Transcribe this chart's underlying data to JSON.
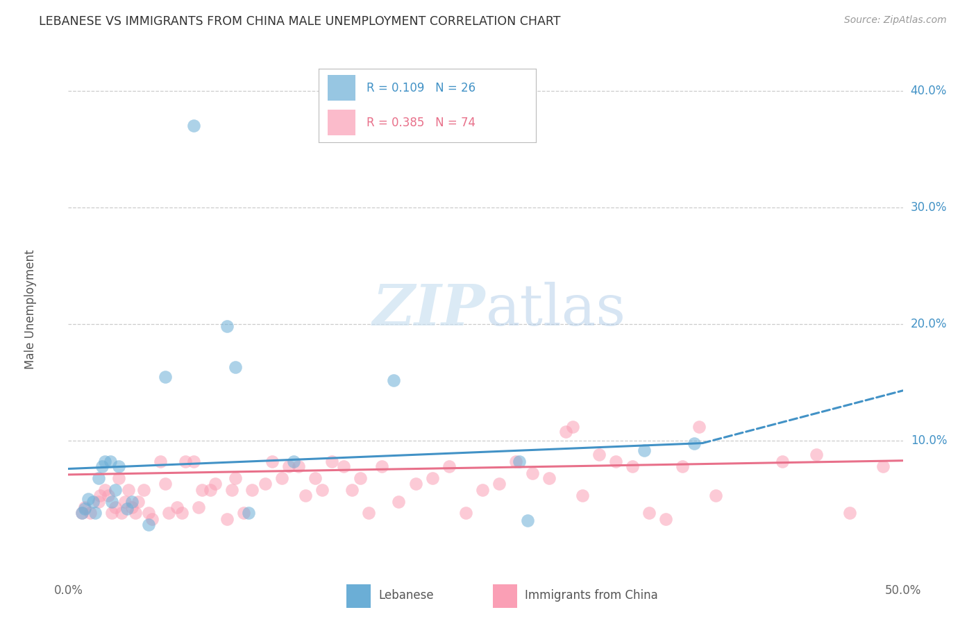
{
  "title": "LEBANESE VS IMMIGRANTS FROM CHINA MALE UNEMPLOYMENT CORRELATION CHART",
  "source": "Source: ZipAtlas.com",
  "ylabel": "Male Unemployment",
  "xlim": [
    0.0,
    0.5
  ],
  "ylim": [
    -0.005,
    0.43
  ],
  "legend_r1_text": "R = 0.109   N = 26",
  "legend_r2_text": "R = 0.385   N = 74",
  "color_blue": "#6baed6",
  "color_pink": "#fa9fb5",
  "color_blue_line": "#4292c6",
  "color_pink_line": "#e8708a",
  "trendline_blue_solid": [
    [
      0.0,
      0.076
    ],
    [
      0.38,
      0.098
    ]
  ],
  "trendline_blue_dashed": [
    [
      0.38,
      0.098
    ],
    [
      0.5,
      0.143
    ]
  ],
  "trendline_pink": [
    [
      0.0,
      0.071
    ],
    [
      0.5,
      0.083
    ]
  ],
  "scatter_blue": [
    [
      0.008,
      0.038
    ],
    [
      0.01,
      0.042
    ],
    [
      0.012,
      0.05
    ],
    [
      0.015,
      0.048
    ],
    [
      0.016,
      0.038
    ],
    [
      0.018,
      0.068
    ],
    [
      0.02,
      0.078
    ],
    [
      0.022,
      0.082
    ],
    [
      0.025,
      0.082
    ],
    [
      0.026,
      0.048
    ],
    [
      0.028,
      0.058
    ],
    [
      0.03,
      0.078
    ],
    [
      0.035,
      0.042
    ],
    [
      0.038,
      0.048
    ],
    [
      0.048,
      0.028
    ],
    [
      0.058,
      0.155
    ],
    [
      0.075,
      0.37
    ],
    [
      0.095,
      0.198
    ],
    [
      0.1,
      0.163
    ],
    [
      0.108,
      0.038
    ],
    [
      0.135,
      0.082
    ],
    [
      0.195,
      0.152
    ],
    [
      0.27,
      0.082
    ],
    [
      0.275,
      0.032
    ],
    [
      0.345,
      0.092
    ],
    [
      0.375,
      0.098
    ]
  ],
  "scatter_pink": [
    [
      0.008,
      0.038
    ],
    [
      0.01,
      0.043
    ],
    [
      0.013,
      0.038
    ],
    [
      0.018,
      0.048
    ],
    [
      0.019,
      0.053
    ],
    [
      0.022,
      0.058
    ],
    [
      0.024,
      0.053
    ],
    [
      0.026,
      0.038
    ],
    [
      0.028,
      0.043
    ],
    [
      0.03,
      0.068
    ],
    [
      0.032,
      0.038
    ],
    [
      0.034,
      0.048
    ],
    [
      0.036,
      0.058
    ],
    [
      0.038,
      0.043
    ],
    [
      0.04,
      0.038
    ],
    [
      0.042,
      0.048
    ],
    [
      0.045,
      0.058
    ],
    [
      0.048,
      0.038
    ],
    [
      0.05,
      0.033
    ],
    [
      0.055,
      0.082
    ],
    [
      0.058,
      0.063
    ],
    [
      0.06,
      0.038
    ],
    [
      0.065,
      0.043
    ],
    [
      0.068,
      0.038
    ],
    [
      0.07,
      0.082
    ],
    [
      0.075,
      0.082
    ],
    [
      0.078,
      0.043
    ],
    [
      0.08,
      0.058
    ],
    [
      0.085,
      0.058
    ],
    [
      0.088,
      0.063
    ],
    [
      0.095,
      0.033
    ],
    [
      0.098,
      0.058
    ],
    [
      0.1,
      0.068
    ],
    [
      0.105,
      0.038
    ],
    [
      0.11,
      0.058
    ],
    [
      0.118,
      0.063
    ],
    [
      0.122,
      0.082
    ],
    [
      0.128,
      0.068
    ],
    [
      0.132,
      0.078
    ],
    [
      0.138,
      0.078
    ],
    [
      0.142,
      0.053
    ],
    [
      0.148,
      0.068
    ],
    [
      0.152,
      0.058
    ],
    [
      0.158,
      0.082
    ],
    [
      0.165,
      0.078
    ],
    [
      0.17,
      0.058
    ],
    [
      0.175,
      0.068
    ],
    [
      0.18,
      0.038
    ],
    [
      0.188,
      0.078
    ],
    [
      0.198,
      0.048
    ],
    [
      0.208,
      0.063
    ],
    [
      0.218,
      0.068
    ],
    [
      0.228,
      0.078
    ],
    [
      0.238,
      0.038
    ],
    [
      0.248,
      0.058
    ],
    [
      0.258,
      0.063
    ],
    [
      0.268,
      0.082
    ],
    [
      0.278,
      0.072
    ],
    [
      0.288,
      0.068
    ],
    [
      0.298,
      0.108
    ],
    [
      0.302,
      0.112
    ],
    [
      0.308,
      0.053
    ],
    [
      0.318,
      0.088
    ],
    [
      0.328,
      0.082
    ],
    [
      0.338,
      0.078
    ],
    [
      0.348,
      0.038
    ],
    [
      0.358,
      0.033
    ],
    [
      0.368,
      0.078
    ],
    [
      0.378,
      0.112
    ],
    [
      0.388,
      0.053
    ],
    [
      0.428,
      0.082
    ],
    [
      0.448,
      0.088
    ],
    [
      0.468,
      0.038
    ],
    [
      0.488,
      0.078
    ]
  ],
  "ytick_positions": [
    0.1,
    0.2,
    0.3,
    0.4
  ],
  "ytick_labels": [
    "10.0%",
    "20.0%",
    "30.0%",
    "40.0%"
  ]
}
